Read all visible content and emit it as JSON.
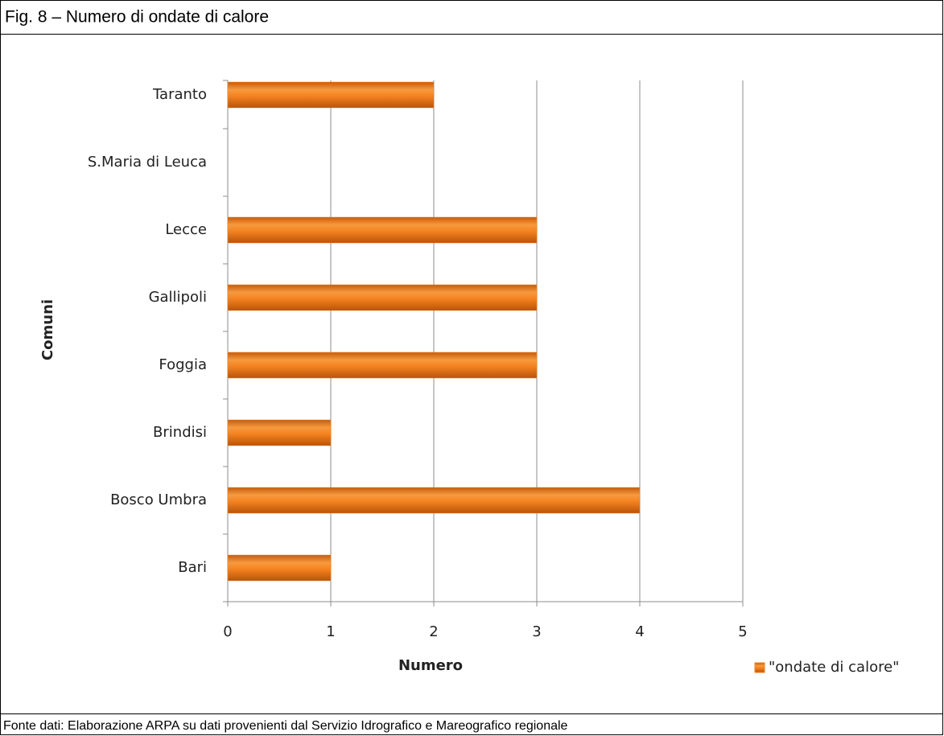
{
  "header": {
    "title": "Fig. 8 – Numero di ondate di calore"
  },
  "chart_data": {
    "type": "hbar",
    "x_label": "Numero",
    "y_label": "Comuni",
    "categories": [
      "Bari",
      "Bosco Umbra",
      "Brindisi",
      "Foggia",
      "Gallipoli",
      "Lecce",
      "S.Maria di Leuca",
      "Taranto"
    ],
    "series": [
      {
        "name": "\"ondate di calore\"",
        "color": "#f5821f",
        "values": [
          1,
          4,
          1,
          3,
          3,
          3,
          0,
          2
        ]
      }
    ],
    "xlim": [
      0,
      5
    ],
    "xticks": [
      0,
      1,
      2,
      3,
      4,
      5
    ],
    "grid": true,
    "legend": "bottom-right"
  },
  "footer": {
    "source": "Fonte dati: Elaborazione ARPA su dati provenienti dal Servizio Idrografico e Mareografico regionale"
  }
}
